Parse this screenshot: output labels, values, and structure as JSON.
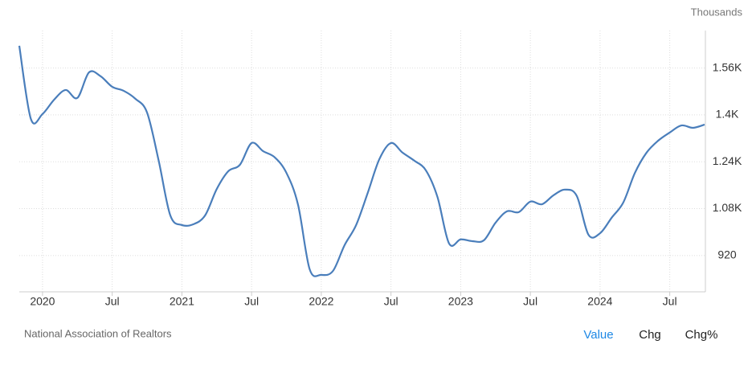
{
  "chart_data": {
    "type": "line",
    "unit_label": "Thousands",
    "source": "National Association of Realtors",
    "tabs": [
      "Value",
      "Chg",
      "Chg%"
    ],
    "categories": [
      null,
      null,
      "2020",
      null,
      null,
      null,
      null,
      null,
      "Jul",
      null,
      null,
      null,
      null,
      null,
      "2021",
      null,
      null,
      null,
      null,
      null,
      "Jul",
      null,
      null,
      null,
      null,
      null,
      "2022",
      null,
      null,
      null,
      null,
      null,
      "Jul",
      null,
      null,
      null,
      null,
      null,
      "2023",
      null,
      null,
      null,
      null,
      null,
      "Jul",
      null,
      null,
      null,
      null,
      null,
      "2024",
      null,
      null,
      null,
      null,
      null,
      "Jul",
      null,
      null,
      null
    ],
    "series": [
      {
        "color": "#4a7ebb",
        "values": [
          1636,
          1386,
          1403,
          1452,
          1485,
          1458,
          1545,
          1532,
          1496,
          1482,
          1455,
          1408,
          1244,
          1057,
          1024,
          1027,
          1057,
          1147,
          1208,
          1230,
          1304,
          1276,
          1255,
          1202,
          1093,
          873,
          854,
          867,
          955,
          1024,
          1134,
          1249,
          1304,
          1271,
          1244,
          1211,
          1120,
          961,
          975,
          969,
          972,
          1032,
          1071,
          1068,
          1104,
          1095,
          1126,
          1145,
          1123,
          991,
          996,
          1049,
          1101,
          1202,
          1271,
          1312,
          1340,
          1364,
          1356,
          1367
        ]
      }
    ],
    "ylim": [
      796,
      1688
    ],
    "yticks": [
      920,
      {
        "value": 1080,
        "label": "1.08K"
      },
      {
        "value": 1240,
        "label": "1.24K"
      },
      {
        "value": 1400,
        "label": "1.4K"
      },
      {
        "value": 1560,
        "label": "1.56K"
      }
    ],
    "grid": true
  }
}
